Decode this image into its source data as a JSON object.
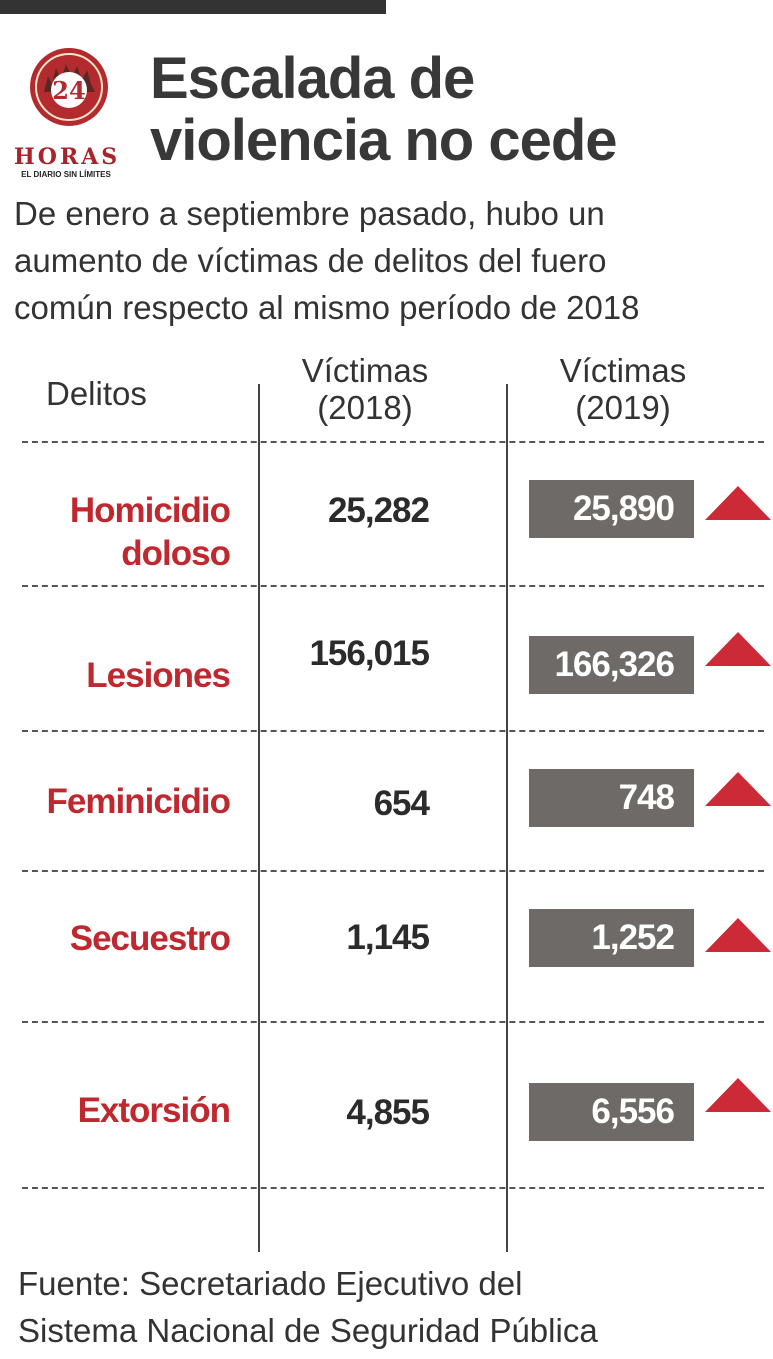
{
  "logo": {
    "number": "24",
    "brand": "HORAS",
    "tagline": "EL DIARIO SIN LÍMITES"
  },
  "title_line1": "Escalada de",
  "title_line2": "violencia no cede",
  "subtitle_line1": "De enero a septiembre pasado, hubo un",
  "subtitle_line2": "aumento de víctimas de delitos del fuero",
  "subtitle_line3": "común respecto al mismo período de 2018",
  "headers": {
    "delitos": "Delitos",
    "col2018_line1": "Víctimas",
    "col2018_line2": "(2018)",
    "col2019_line1": "Víctimas",
    "col2019_line2": "(2019)"
  },
  "chart_data": {
    "type": "table",
    "columns": [
      "Delitos",
      "Víctimas (2018)",
      "Víctimas (2019)"
    ],
    "rows": [
      {
        "label_line1": "Homicidio",
        "label_line2": "doloso",
        "v2018": "25,282",
        "v2019": "25,890",
        "trend": "up"
      },
      {
        "label_line1": "Lesiones",
        "label_line2": "",
        "v2018": "156,015",
        "v2019": "166,326",
        "trend": "up"
      },
      {
        "label_line1": "Feminicidio",
        "label_line2": "",
        "v2018": "654",
        "v2019": "748",
        "trend": "up"
      },
      {
        "label_line1": "Secuestro",
        "label_line2": "",
        "v2018": "1,145",
        "v2019": "1,252",
        "trend": "up"
      },
      {
        "label_line1": "Extorsión",
        "label_line2": "",
        "v2018": "4,855",
        "v2019": "6,556",
        "trend": "up"
      }
    ]
  },
  "source_line1": "Fuente: Secretariado Ejecutivo del",
  "source_line2": "Sistema Nacional de Seguridad Pública",
  "colors": {
    "label_red": "#c0282f",
    "box_gray": "#6d6a67",
    "arrow_red": "#cc2a36"
  },
  "icons": {
    "trend_up": "triangle-up-icon"
  }
}
